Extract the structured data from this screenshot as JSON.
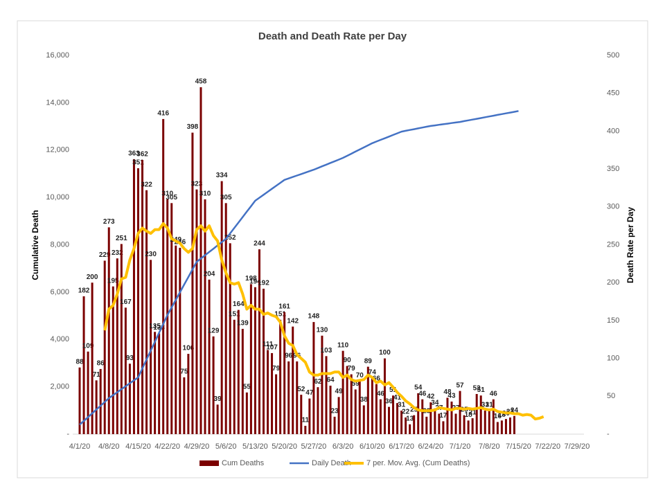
{
  "chart_data": {
    "type": "combo",
    "title": "Death and Death Rate per Day",
    "y_label": "Cumulative Death",
    "y2_label": "Death Rate per Day",
    "categories": [
      "4/1/20",
      null,
      null,
      null,
      null,
      null,
      null,
      "4/8/20",
      null,
      null,
      null,
      null,
      null,
      null,
      "4/15/20",
      null,
      null,
      null,
      null,
      null,
      null,
      "4/22/20",
      null,
      null,
      null,
      null,
      null,
      null,
      "4/29/20",
      null,
      null,
      null,
      null,
      null,
      null,
      "5/6/20",
      null,
      null,
      null,
      null,
      null,
      null,
      "5/13/20",
      null,
      null,
      null,
      null,
      null,
      null,
      "5/20/20",
      null,
      null,
      null,
      null,
      null,
      null,
      "5/27/20",
      null,
      null,
      null,
      null,
      null,
      null,
      "6/3/20",
      null,
      null,
      null,
      null,
      null,
      null,
      "6/10/20",
      null,
      null,
      null,
      null,
      null,
      null,
      "6/17/20",
      null,
      null,
      null,
      null,
      null,
      null,
      "6/24/20",
      null,
      null,
      null,
      null,
      null,
      null,
      "7/1/20",
      null,
      null,
      null,
      null,
      null,
      null,
      "7/8/20",
      null,
      null,
      null,
      null,
      null,
      null,
      "7/15/20",
      null,
      null,
      null,
      null,
      null,
      null,
      "7/22/20",
      null,
      null,
      null,
      null,
      null,
      null,
      "7/29/20"
    ],
    "ylim": [
      0,
      16000
    ],
    "yticks": [
      {
        "value": 0,
        "label": "-"
      },
      {
        "value": 2000,
        "label": "2,000"
      },
      {
        "value": 4000,
        "label": "4,000"
      },
      {
        "value": 6000,
        "label": "6,000"
      },
      {
        "value": 8000,
        "label": "8,000"
      },
      {
        "value": 10000,
        "label": "10,000"
      },
      {
        "value": 12000,
        "label": "12,000"
      },
      {
        "value": 14000,
        "label": "14,000"
      },
      {
        "value": 16000,
        "label": "16,000"
      }
    ],
    "y2lim": [
      0,
      500
    ],
    "y2ticks": [
      {
        "value": 0,
        "label": "-"
      },
      50,
      100,
      150,
      200,
      250,
      300,
      350,
      400,
      450,
      500
    ],
    "grid": false,
    "legend": "bottom",
    "series": [
      {
        "name": "Cum Deaths",
        "type": "bar",
        "axis": "y2",
        "color": "#7b0000",
        "values": [
          88,
          182,
          109,
          200,
          71,
          86,
          229,
          273,
          195,
          232,
          251,
          167,
          93,
          363,
          351,
          362,
          322,
          230,
          135,
          133,
          416,
          310,
          305,
          249,
          246,
          75,
          106,
          398,
          323,
          458,
          310,
          204,
          129,
          39,
          334,
          305,
          252,
          151,
          164,
          139,
          55,
          198,
          194,
          244,
          192,
          111,
          107,
          79,
          151,
          161,
          96,
          142,
          96,
          52,
          11,
          47,
          148,
          62,
          130,
          103,
          64,
          23,
          49,
          110,
          90,
          79,
          59,
          70,
          38,
          89,
          74,
          66,
          46,
          100,
          36,
          51,
          41,
          31,
          22,
          13,
          25,
          54,
          46,
          23,
          42,
          34,
          27,
          17,
          48,
          43,
          27,
          57,
          25,
          18,
          21,
          53,
          51,
          31,
          31,
          46,
          16,
          18,
          20,
          22,
          24,
          null,
          null,
          null,
          null,
          null,
          null,
          null,
          null,
          null,
          null,
          null,
          null,
          null,
          null,
          null
        ]
      },
      {
        "name": "Daily Death",
        "type": "line",
        "axis": "y",
        "color": "#4472c4",
        "values": [
          400,
          560,
          720,
          880,
          1040,
          1200,
          1360,
          1520,
          1646,
          1771,
          1897,
          2023,
          2149,
          2274,
          2400,
          2776,
          3151,
          3527,
          3903,
          4279,
          4654,
          5030,
          5351,
          5673,
          5994,
          6316,
          6637,
          6959,
          7280,
          7419,
          7557,
          7696,
          7834,
          7973,
          8111,
          8250,
          8480,
          8710,
          8940,
          9170,
          9400,
          9630,
          9860,
          9986,
          10111,
          10237,
          10363,
          10489,
          10614,
          10740,
          10801,
          10863,
          10924,
          10986,
          11047,
          11109,
          11170,
          11241,
          11313,
          11384,
          11456,
          11527,
          11599,
          11670,
          11759,
          11847,
          11936,
          12024,
          12113,
          12201,
          12290,
          12360,
          12430,
          12500,
          12570,
          12640,
          12710,
          12780,
          12814,
          12849,
          12883,
          12917,
          12951,
          12986,
          13020,
          13044,
          13069,
          13093,
          13117,
          13141,
          13166,
          13190,
          13223,
          13256,
          13289,
          13321,
          13354,
          13387,
          13420,
          13453,
          13486,
          13519,
          13551,
          13584,
          13617,
          13650,
          null,
          null,
          null,
          null,
          null,
          null,
          null,
          null,
          null,
          null,
          null,
          null,
          null,
          null
        ]
      },
      {
        "name": "7 per. Mov. Avg. (Cum Deaths)",
        "type": "line",
        "axis": "y2",
        "color": "#ffc000",
        "values": [
          null,
          null,
          null,
          null,
          null,
          null,
          137,
          165,
          170,
          185,
          205,
          207,
          230,
          245,
          265,
          272,
          268,
          265,
          270,
          270,
          278,
          272,
          258,
          255,
          252,
          245,
          240,
          245,
          270,
          275,
          268,
          275,
          262,
          255,
          230,
          213,
          200,
          198,
          200,
          185,
          165,
          170,
          165,
          165,
          158,
          160,
          157,
          155,
          148,
          130,
          120,
          117,
          105,
          100,
          95,
          82,
          78,
          78,
          80,
          80,
          80,
          82,
          82,
          75,
          78,
          72,
          70,
          71,
          72,
          78,
          75,
          68,
          70,
          65,
          68,
          62,
          55,
          50,
          44,
          40,
          35,
          32,
          31,
          31,
          31,
          32,
          35,
          34,
          33,
          32,
          34,
          34,
          33,
          34,
          33,
          34,
          35,
          33,
          32,
          33,
          30,
          29,
          28,
          28,
          27,
          27,
          25,
          26,
          25,
          20,
          21,
          23,
          null,
          null,
          null,
          null,
          null,
          null,
          null,
          null
        ]
      }
    ]
  }
}
